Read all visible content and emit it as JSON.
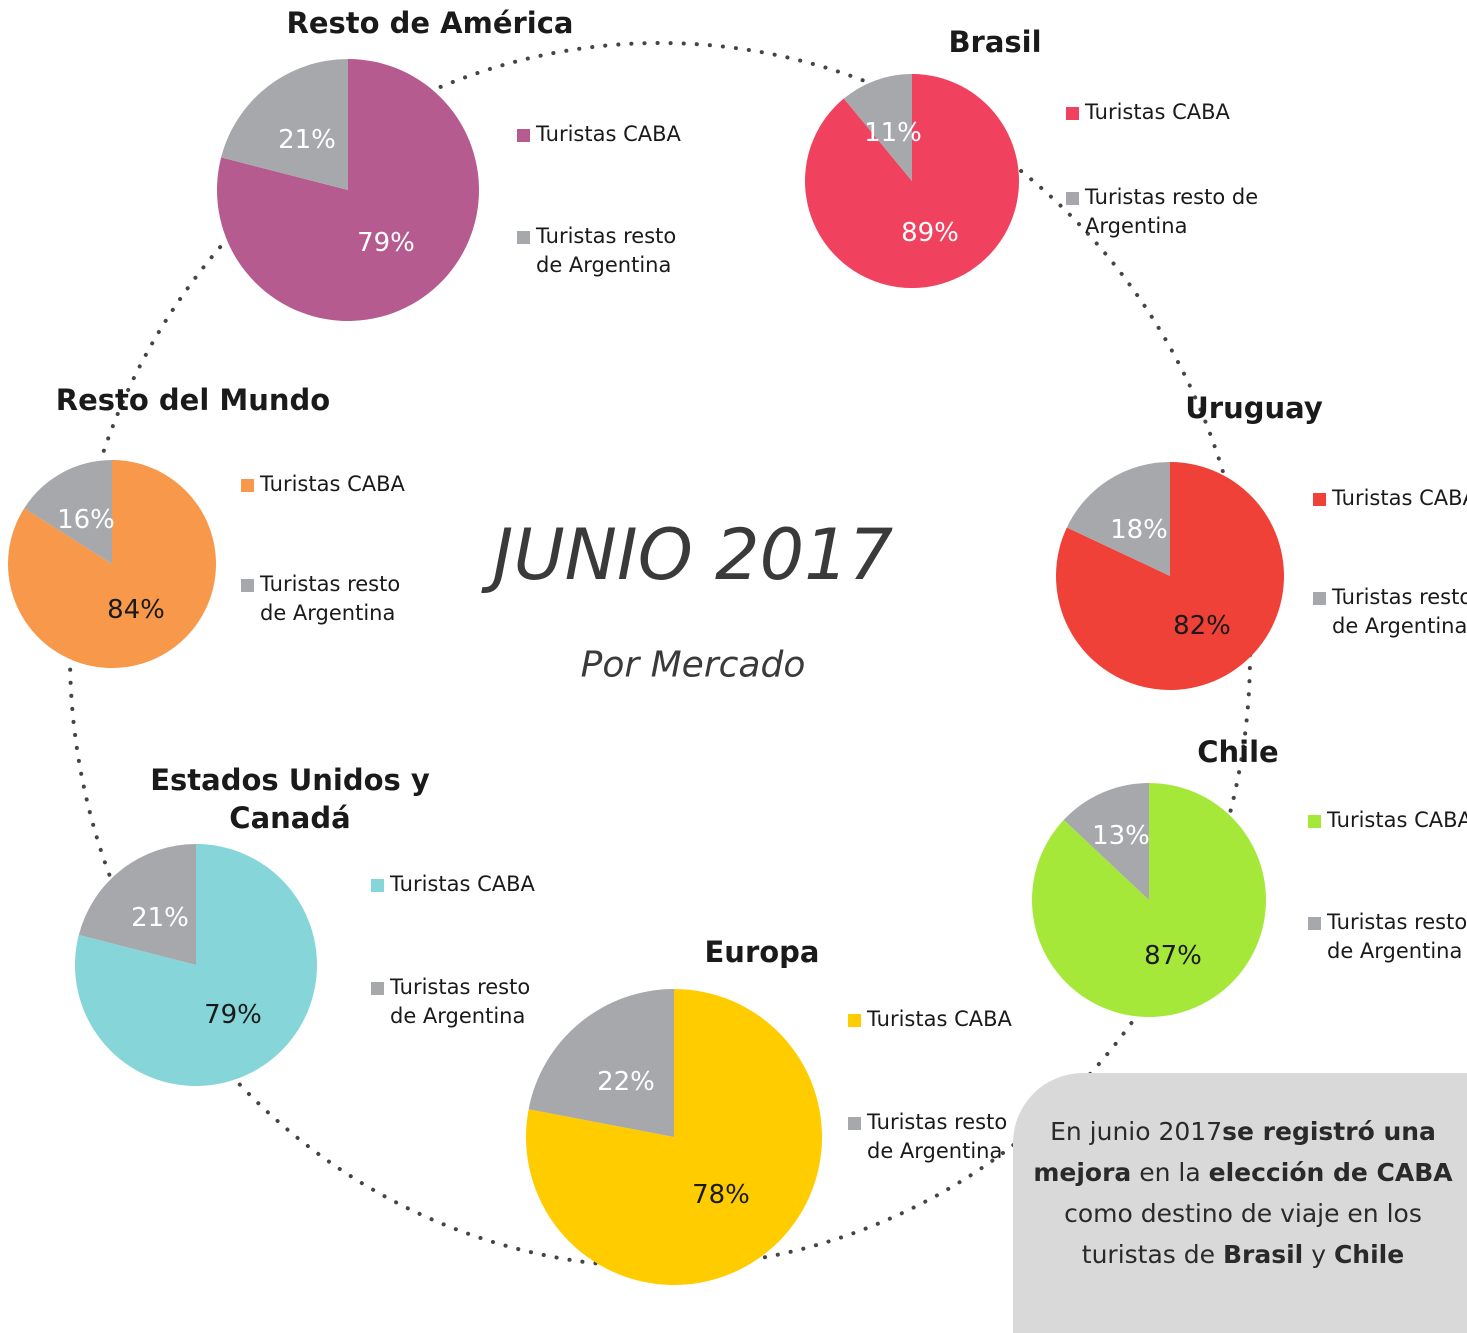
{
  "title": "JUNIO 2017",
  "subtitle": "Por Mercado",
  "note": [
    {
      "text": "En junio 2017",
      "bold": false
    },
    {
      "text": "se registró una mejora",
      "bold": true
    },
    {
      "text": " en la ",
      "bold": false
    },
    {
      "text": "elección de CABA",
      "bold": true
    },
    {
      "text": " como destino de viaje en los turistas de ",
      "bold": false
    },
    {
      "text": "Brasil",
      "bold": true
    },
    {
      "text": " y ",
      "bold": false
    },
    {
      "text": "Chile",
      "bold": true
    }
  ],
  "chart_data": [
    {
      "type": "pie",
      "title": "Resto de América",
      "categories": [
        "Turistas CABA",
        "Turistas resto de Argentina"
      ],
      "values": [
        79,
        21
      ],
      "value_labels": [
        "79%",
        "21%"
      ],
      "colors": [
        "#b55b8f",
        "#a7a8ab"
      ],
      "label_colors": [
        "#ffffff",
        "#ffffff"
      ]
    },
    {
      "type": "pie",
      "title": "Brasil",
      "categories": [
        "Turistas CABA",
        "Turistas resto de Argentina"
      ],
      "values": [
        89,
        11
      ],
      "value_labels": [
        "89%",
        "11%"
      ],
      "colors": [
        "#f0415e",
        "#a7a8ab"
      ],
      "label_colors": [
        "#ffffff",
        "#ffffff"
      ]
    },
    {
      "type": "pie",
      "title": "Uruguay",
      "categories": [
        "Turistas CABA",
        "Turistas resto de Argentina"
      ],
      "values": [
        82,
        18
      ],
      "value_labels": [
        "82%",
        "18%"
      ],
      "colors": [
        "#ef4137",
        "#a7a8ab"
      ],
      "label_colors": [
        "#1a1a1a",
        "#ffffff"
      ]
    },
    {
      "type": "pie",
      "title": "Chile",
      "categories": [
        "Turistas CABA",
        "Turistas resto de Argentina"
      ],
      "values": [
        87,
        13
      ],
      "value_labels": [
        "87%",
        "13%"
      ],
      "colors": [
        "#a5e83a",
        "#a7a8ab"
      ],
      "label_colors": [
        "#1a1a1a",
        "#ffffff"
      ]
    },
    {
      "type": "pie",
      "title": "Europa",
      "categories": [
        "Turistas CABA",
        "Turistas resto de Argentina"
      ],
      "values": [
        78,
        22
      ],
      "value_labels": [
        "78%",
        "22%"
      ],
      "colors": [
        "#ffcc00",
        "#a7a8ab"
      ],
      "label_colors": [
        "#1a1a1a",
        "#ffffff"
      ]
    },
    {
      "type": "pie",
      "title": "Estados Unidos y Canadá",
      "categories": [
        "Turistas CABA",
        "Turistas resto de Argentina"
      ],
      "values": [
        79,
        21
      ],
      "value_labels": [
        "79%",
        "21%"
      ],
      "colors": [
        "#86d5d8",
        "#a7a8ab"
      ],
      "label_colors": [
        "#1a1a1a",
        "#ffffff"
      ]
    },
    {
      "type": "pie",
      "title": "Resto del Mundo",
      "categories": [
        "Turistas CABA",
        "Turistas resto de Argentina"
      ],
      "values": [
        84,
        16
      ],
      "value_labels": [
        "84%",
        "16%"
      ],
      "colors": [
        "#f7984a",
        "#a7a8ab"
      ],
      "label_colors": [
        "#1a1a1a",
        "#ffffff"
      ]
    }
  ]
}
